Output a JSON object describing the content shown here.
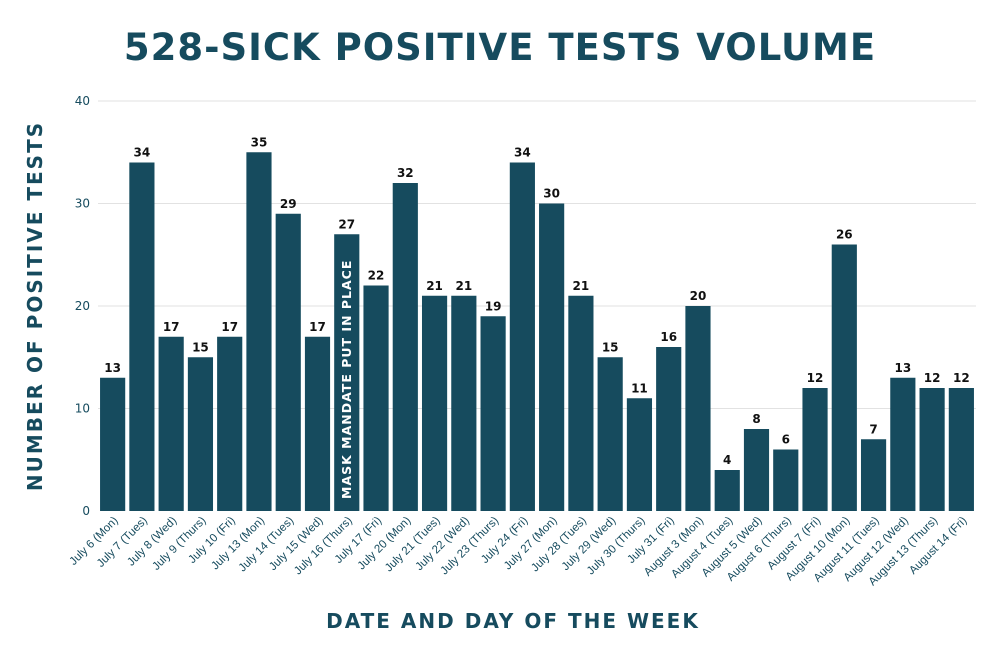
{
  "chart_data": {
    "type": "bar",
    "title": "528-SICK POSITIVE TESTS VOLUME",
    "xlabel": "DATE AND DAY OF THE WEEK",
    "ylabel": "NUMBER OF POSITIVE TESTS",
    "ylim": [
      0,
      40
    ],
    "yticks": [
      0,
      10,
      20,
      30,
      40
    ],
    "grid": true,
    "bar_color": "#164b5e",
    "categories": [
      "July 6 (Mon)",
      "July 7 (Tues)",
      "July 8 (Wed)",
      "July 9 (Thurs)",
      "July 10 (Fri)",
      "July 13 (Mon)",
      "July 14 (Tues)",
      "July 15 (Wed)",
      "July 16 (Thurs)",
      "July 17 (Fri)",
      "July 20 (Mon)",
      "July 21 (Tues)",
      "July 22 (Wed)",
      "July 23 (Thurs)",
      "July 24 (Fri)",
      "July 27 (Mon)",
      "July 28 (Tues)",
      "July 29 (Wed)",
      "July 30 (Thurs)",
      "July 31 (Fri)",
      "August 3 (Mon)",
      "August 4 (Tues)",
      "August 5 (Wed)",
      "August 6 (Thurs)",
      "August 7 (Fri)",
      "August 10 (Mon)",
      "August 11 (Tues)",
      "August 12 (Wed)",
      "August 13 (Thurs)",
      "August 14 (Fri)"
    ],
    "values": [
      13,
      34,
      17,
      15,
      17,
      35,
      29,
      17,
      27,
      22,
      32,
      21,
      21,
      19,
      34,
      30,
      21,
      15,
      11,
      16,
      20,
      4,
      8,
      6,
      12,
      26,
      7,
      13,
      12,
      12
    ],
    "annotation": {
      "text": "MASK MANDATE PUT IN PLACE",
      "category": "July 16 (Thurs)"
    }
  }
}
